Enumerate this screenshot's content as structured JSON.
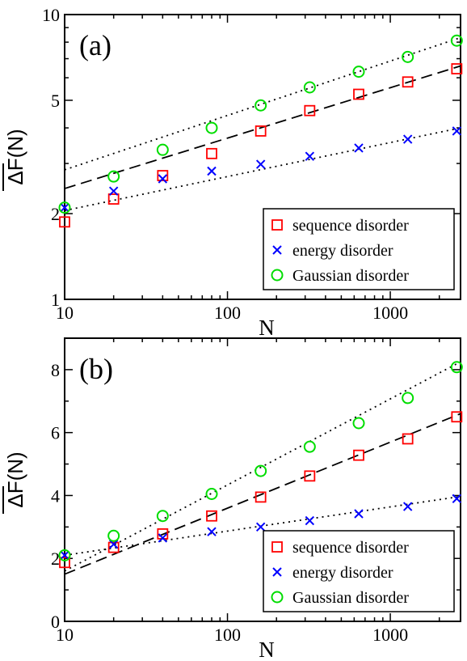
{
  "chart_data": [
    {
      "type": "scatter",
      "panel_label": "(a)",
      "xlabel": "N",
      "ylabel": "ΔF(N)",
      "x_scale": "log",
      "y_scale": "log",
      "xlim": [
        10,
        2700
      ],
      "ylim": [
        1,
        10
      ],
      "x_ticks": [
        10,
        100,
        1000
      ],
      "x_tick_labels": [
        "10",
        "100",
        "1000"
      ],
      "y_ticks": [
        1,
        2,
        5,
        10
      ],
      "y_tick_labels": [
        "1",
        "2",
        "5",
        "10"
      ],
      "grid": false,
      "legend_position": "bottom-right",
      "series": [
        {
          "name": "sequence disorder",
          "marker": "square",
          "color": "#ff0000",
          "x": [
            10,
            20,
            40,
            80,
            160,
            320,
            640,
            1280,
            2560
          ],
          "y": [
            1.87,
            2.25,
            2.72,
            3.25,
            3.9,
            4.6,
            5.25,
            5.8,
            6.45
          ]
        },
        {
          "name": "energy disorder",
          "marker": "x",
          "color": "#0000ff",
          "x": [
            10,
            20,
            40,
            80,
            160,
            320,
            640,
            1280,
            2560
          ],
          "y": [
            2.1,
            2.4,
            2.65,
            2.82,
            2.98,
            3.18,
            3.4,
            3.65,
            3.9
          ]
        },
        {
          "name": "Gaussian disorder",
          "marker": "circle",
          "color": "#00dd00",
          "x": [
            10,
            20,
            40,
            80,
            160,
            320,
            640,
            1280,
            2560
          ],
          "y": [
            2.1,
            2.7,
            3.35,
            4.0,
            4.8,
            5.55,
            6.3,
            7.1,
            8.1
          ]
        }
      ],
      "fit_lines": [
        {
          "style": "dashed",
          "x": [
            10,
            2700
          ],
          "y": [
            2.45,
            6.6
          ]
        },
        {
          "style": "dotted",
          "x": [
            10,
            2700
          ],
          "y": [
            2.85,
            8.3
          ]
        },
        {
          "style": "dotted",
          "x": [
            10,
            2700
          ],
          "y": [
            2.05,
            4.0
          ]
        }
      ]
    },
    {
      "type": "scatter",
      "panel_label": "(b)",
      "xlabel": "N",
      "ylabel": "ΔF(N)",
      "x_scale": "log",
      "y_scale": "linear",
      "xlim": [
        10,
        2700
      ],
      "ylim": [
        0,
        9
      ],
      "x_ticks": [
        10,
        100,
        1000
      ],
      "x_tick_labels": [
        "10",
        "100",
        "1000"
      ],
      "y_ticks": [
        0,
        2,
        4,
        6,
        8
      ],
      "y_tick_labels": [
        "0",
        "2",
        "4",
        "6",
        "8"
      ],
      "grid": false,
      "legend_position": "bottom-right",
      "series": [
        {
          "name": "sequence disorder",
          "marker": "square",
          "color": "#ff0000",
          "x": [
            10,
            20,
            40,
            80,
            160,
            320,
            640,
            1280,
            2560
          ],
          "y": [
            1.87,
            2.35,
            2.78,
            3.35,
            3.95,
            4.62,
            5.28,
            5.8,
            6.5
          ]
        },
        {
          "name": "energy disorder",
          "marker": "x",
          "color": "#0000ff",
          "x": [
            10,
            20,
            40,
            80,
            160,
            320,
            640,
            1280,
            2560
          ],
          "y": [
            2.1,
            2.45,
            2.65,
            2.85,
            3.0,
            3.2,
            3.42,
            3.65,
            3.9
          ]
        },
        {
          "name": "Gaussian disorder",
          "marker": "circle",
          "color": "#00dd00",
          "x": [
            10,
            20,
            40,
            80,
            160,
            320,
            640,
            1280,
            2560
          ],
          "y": [
            2.1,
            2.72,
            3.35,
            4.05,
            4.78,
            5.55,
            6.3,
            7.1,
            8.08
          ]
        }
      ],
      "fit_lines": [
        {
          "style": "dashed",
          "x": [
            10,
            2700
          ],
          "y": [
            1.5,
            6.6
          ]
        },
        {
          "style": "dotted",
          "x": [
            10,
            2700
          ],
          "y": [
            1.6,
            8.25
          ]
        },
        {
          "style": "dotted",
          "x": [
            10,
            2700
          ],
          "y": [
            2.1,
            3.97
          ]
        }
      ]
    }
  ]
}
